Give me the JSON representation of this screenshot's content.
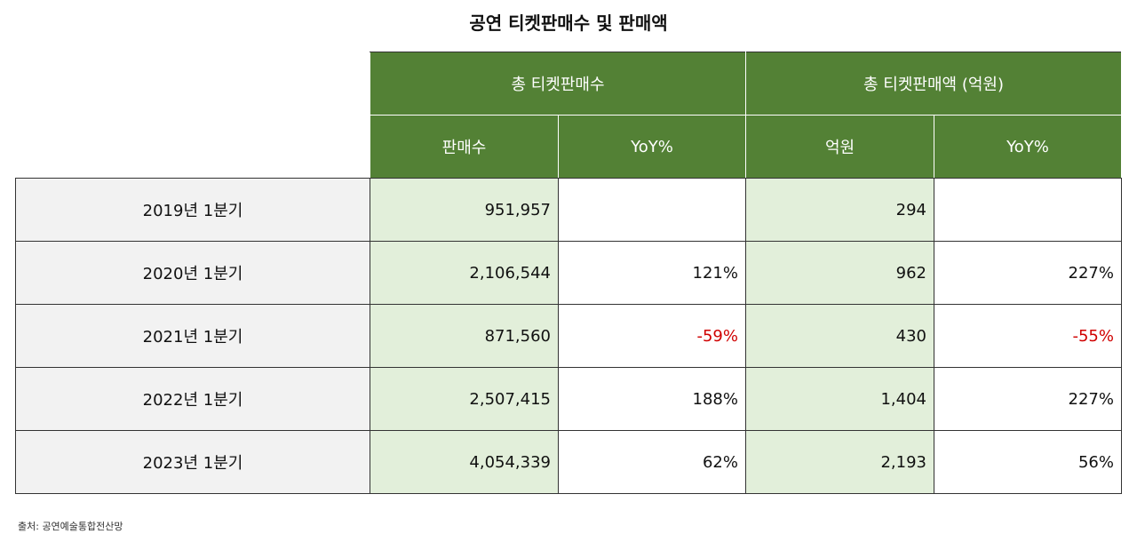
{
  "title": "공연 티켓판매수 및 판매액",
  "header": {
    "group1": "총 티켓판매수",
    "group2": "총 티켓판매액 (억원)",
    "col1": "판매수",
    "col2": "YoY%",
    "col3": "억원",
    "col4": "YoY%"
  },
  "rows": [
    {
      "period": "2019년 1분기",
      "count": "951,957",
      "count_yoy": "",
      "amount": "294",
      "amount_yoy": ""
    },
    {
      "period": "2020년 1분기",
      "count": "2,106,544",
      "count_yoy": "121%",
      "amount": "962",
      "amount_yoy": "227%"
    },
    {
      "period": "2021년 1분기",
      "count": "871,560",
      "count_yoy": "-59%",
      "amount": "430",
      "amount_yoy": "-55%"
    },
    {
      "period": "2022년 1분기",
      "count": "2,507,415",
      "count_yoy": "188%",
      "amount": "1,404",
      "amount_yoy": "227%"
    },
    {
      "period": "2023년 1분기",
      "count": "4,054,339",
      "count_yoy": "62%",
      "amount": "2,193",
      "amount_yoy": "56%"
    }
  ],
  "source": "출처: 공연예술통합전산망",
  "colors": {
    "header": "#538135",
    "value_fill": "#E2EFDA",
    "label_fill": "#F2F2F2",
    "negative": "#D00000"
  }
}
